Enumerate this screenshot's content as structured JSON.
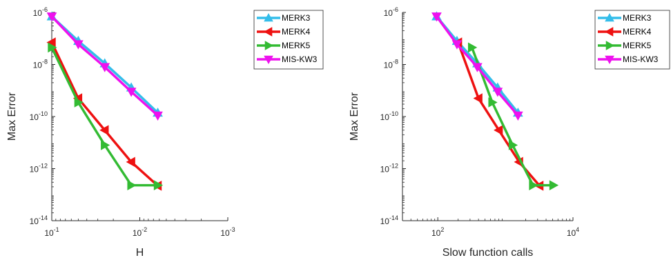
{
  "chart_data": [
    {
      "type": "line",
      "xlabel": "H",
      "ylabel": "Max Error",
      "x_scale": "log",
      "y_scale": "log",
      "x_reversed": true,
      "xlim": [
        0.1,
        0.001
      ],
      "ylim": [
        1e-14,
        1e-06
      ],
      "x_ticks": [
        {
          "value": 0.1,
          "base": "10",
          "exp": "-1"
        },
        {
          "value": 0.01,
          "base": "10",
          "exp": "-2"
        },
        {
          "value": 0.001,
          "base": "10",
          "exp": "-3"
        }
      ],
      "y_ticks": [
        {
          "value": 1e-06,
          "base": "10",
          "exp": "-6"
        },
        {
          "value": 1e-08,
          "base": "10",
          "exp": "-8"
        },
        {
          "value": 1e-10,
          "base": "10",
          "exp": "-10"
        },
        {
          "value": 1e-12,
          "base": "10",
          "exp": "-12"
        },
        {
          "value": 1e-14,
          "base": "10",
          "exp": "-14"
        }
      ],
      "legend_position": "outside-top-right",
      "series": [
        {
          "name": "MERK3",
          "color": "#33bdea",
          "marker": "triangle-up",
          "x": [
            0.1,
            0.05,
            0.025,
            0.0125,
            0.00625
          ],
          "y": [
            7e-07,
            8e-08,
            1.1e-08,
            1.3e-09,
            1.4e-10
          ]
        },
        {
          "name": "MERK4",
          "color": "#ee1111",
          "marker": "triangle-left",
          "x": [
            0.1,
            0.05,
            0.025,
            0.0125,
            0.00625
          ],
          "y": [
            7e-08,
            5e-10,
            3e-11,
            1.8e-12,
            2.2e-13
          ]
        },
        {
          "name": "MERK5",
          "color": "#33bb33",
          "marker": "triangle-right",
          "x": [
            0.1,
            0.05,
            0.025,
            0.0125,
            0.00625
          ],
          "y": [
            4.5e-08,
            3.5e-10,
            8e-12,
            2.3e-13,
            2.3e-13
          ]
        },
        {
          "name": "MIS-KW3",
          "color": "#ee11ee",
          "marker": "triangle-down",
          "x": [
            0.1,
            0.05,
            0.025,
            0.0125,
            0.00625
          ],
          "y": [
            7e-07,
            6e-08,
            8e-09,
            9e-10,
            1.1e-10
          ]
        }
      ]
    },
    {
      "type": "line",
      "xlabel": "Slow function calls",
      "ylabel": "Max Error",
      "x_scale": "log",
      "y_scale": "log",
      "x_reversed": false,
      "xlim": [
        30,
        10000
      ],
      "ylim": [
        1e-14,
        1e-06
      ],
      "x_ticks": [
        {
          "value": 100,
          "base": "10",
          "exp": "2"
        },
        {
          "value": 10000,
          "base": "10",
          "exp": "4"
        }
      ],
      "y_ticks": [
        {
          "value": 1e-06,
          "base": "10",
          "exp": "-6"
        },
        {
          "value": 1e-08,
          "base": "10",
          "exp": "-8"
        },
        {
          "value": 1e-10,
          "base": "10",
          "exp": "-10"
        },
        {
          "value": 1e-12,
          "base": "10",
          "exp": "-12"
        },
        {
          "value": 1e-14,
          "base": "10",
          "exp": "-14"
        }
      ],
      "legend_position": "outside-top-right",
      "series": [
        {
          "name": "MERK3",
          "color": "#33bdea",
          "marker": "triangle-up",
          "x": [
            96,
            192,
            384,
            768,
            1536
          ],
          "y": [
            7e-07,
            8e-08,
            1.1e-08,
            1.3e-09,
            1.4e-10
          ]
        },
        {
          "name": "MERK4",
          "color": "#ee1111",
          "marker": "triangle-left",
          "x": [
            200,
            400,
            800,
            1600,
            3200
          ],
          "y": [
            7e-08,
            5e-10,
            3e-11,
            1.8e-12,
            2.2e-13
          ]
        },
        {
          "name": "MERK5",
          "color": "#33bb33",
          "marker": "triangle-right",
          "x": [
            320,
            640,
            1280,
            2560,
            5120
          ],
          "y": [
            4.5e-08,
            3.5e-10,
            8e-12,
            2.3e-13,
            2.3e-13
          ]
        },
        {
          "name": "MIS-KW3",
          "color": "#ee11ee",
          "marker": "triangle-down",
          "x": [
            96,
            192,
            384,
            768,
            1536
          ],
          "y": [
            7e-07,
            6e-08,
            8e-09,
            9e-10,
            1.1e-10
          ]
        }
      ]
    }
  ]
}
